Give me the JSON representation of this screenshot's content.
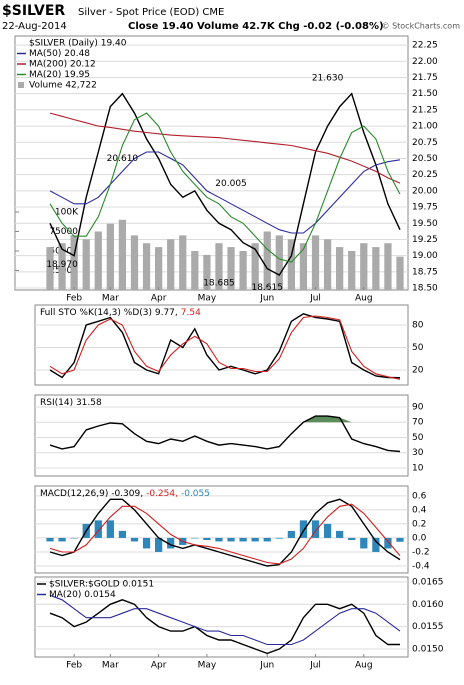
{
  "header": {
    "symbol": "$SILVER",
    "description": "Silver - Spot Price (EOD) CME",
    "date": "22-Aug-2014",
    "quote": "Close 19.40 Volume 42.7K Chg -0.02 (-0.08%)",
    "source": "© StockCharts.com"
  },
  "chart_data": [
    {
      "type": "line",
      "legend": "rows",
      "categories": [
        null,
        null,
        "Feb",
        null,
        null,
        "Mar",
        null,
        null,
        null,
        "Apr",
        null,
        null,
        null,
        "May",
        null,
        null,
        null,
        null,
        "Jun",
        null,
        null,
        null,
        "Jul",
        null,
        null,
        null,
        "Aug",
        null,
        null,
        null
      ],
      "ylim": [
        18.47,
        22.39
      ],
      "yticks": [
        {
          "value": 18.5,
          "label": "18.50"
        },
        18.75,
        {
          "value": 19,
          "label": "19.00"
        },
        19.25,
        {
          "value": 19.5,
          "label": "19.50"
        },
        19.75,
        {
          "value": 20,
          "label": "20.00"
        },
        20.25,
        {
          "value": 20.5,
          "label": "20.50"
        },
        20.75,
        {
          "value": 21,
          "label": "21.00"
        },
        21.25,
        {
          "value": 21.5,
          "label": "21.50"
        },
        21.75,
        {
          "value": 22,
          "label": "22.00"
        },
        22.25
      ],
      "y2lim": [
        0,
        325600
      ],
      "y2ticks": [
        25000,
        50000,
        75000,
        {
          "value": 100000,
          "label": "100K"
        }
      ],
      "grid": true,
      "series": [
        {
          "name": "$SILVER (Daily) 19.40",
          "color": "#000000",
          "style": "line",
          "values": [
            19.5,
            19.1,
            19.0,
            19.9,
            20.6,
            21.3,
            21.5,
            21.2,
            20.8,
            20.5,
            20.1,
            19.9,
            20.0,
            19.7,
            19.5,
            19.4,
            19.2,
            19.1,
            18.8,
            18.7,
            19.0,
            19.8,
            20.6,
            21.0,
            21.3,
            21.5,
            20.9,
            20.4,
            19.8,
            19.4
          ]
        },
        {
          "name": "MA(50) 20.48",
          "color": "#2b2b9c",
          "style": "line",
          "values": [
            20.0,
            19.9,
            19.8,
            19.8,
            19.9,
            20.1,
            20.3,
            20.5,
            20.6,
            20.6,
            20.5,
            20.4,
            20.2,
            20.0,
            19.9,
            19.8,
            19.7,
            19.6,
            19.5,
            19.4,
            19.35,
            19.35,
            19.5,
            19.7,
            19.9,
            20.1,
            20.3,
            20.4,
            20.45,
            20.48
          ]
        },
        {
          "name": "MA(200) 20.12",
          "color": "#b0202e",
          "style": "line",
          "values": [
            21.2,
            21.15,
            21.1,
            21.05,
            21.0,
            20.98,
            20.95,
            20.92,
            20.9,
            20.88,
            20.86,
            20.85,
            20.84,
            20.83,
            20.82,
            20.8,
            20.78,
            20.76,
            20.74,
            20.72,
            20.7,
            20.66,
            20.62,
            20.58,
            20.52,
            20.46,
            20.38,
            20.3,
            20.2,
            20.12
          ]
        },
        {
          "name": "MA(20) 19.95",
          "color": "#2a8a2a",
          "style": "line",
          "values": [
            19.8,
            19.5,
            19.3,
            19.3,
            19.6,
            20.1,
            20.7,
            21.1,
            21.2,
            21.0,
            20.6,
            20.3,
            20.1,
            19.9,
            19.8,
            19.6,
            19.5,
            19.3,
            19.1,
            18.95,
            18.9,
            19.1,
            19.5,
            20.0,
            20.5,
            20.9,
            21.0,
            20.8,
            20.3,
            19.95
          ]
        },
        {
          "name": "Volume 42,722",
          "color": "#aaaaaa",
          "style": "bar",
          "axis": "y2",
          "values": [
            55000,
            60000,
            70000,
            65000,
            75000,
            85000,
            90000,
            70000,
            60000,
            55000,
            65000,
            70000,
            50000,
            45000,
            60000,
            55000,
            50000,
            60000,
            75000,
            70000,
            65000,
            60000,
            70000,
            65000,
            55000,
            50000,
            60000,
            55000,
            60000,
            42722
          ]
        }
      ],
      "annotations": [
        {
          "label": "18.970",
          "index": 1,
          "value": 18.97,
          "position": "below"
        },
        {
          "label": "20.610",
          "index": 6,
          "value": 20.61,
          "position": "below"
        },
        {
          "label": "20.005",
          "index": 15,
          "value": 20.005,
          "position": "above"
        },
        {
          "label": "18.685",
          "index": 14,
          "value": 18.685,
          "position": "below"
        },
        {
          "label": "18.615",
          "index": 18,
          "value": 18.615,
          "position": "below"
        },
        {
          "label": "21.630",
          "index": 23,
          "value": 21.63,
          "position": "above"
        }
      ]
    },
    {
      "type": "line",
      "legend": "inline",
      "ylim": [
        0,
        106.7
      ],
      "yticks": [
        20,
        50,
        80
      ],
      "grid": true,
      "series": [
        {
          "name": "Full STO %K(14,3) %D(3) 9.77,",
          "color": "#000000",
          "style": "line",
          "values": [
            20,
            10,
            30,
            80,
            85,
            90,
            70,
            30,
            20,
            15,
            60,
            50,
            75,
            40,
            20,
            25,
            20,
            15,
            20,
            45,
            85,
            95,
            90,
            88,
            85,
            30,
            20,
            12,
            10,
            9.77
          ]
        },
        {
          "name": "7.54",
          "color": "#d02020",
          "style": "line",
          "values": [
            25,
            15,
            20,
            60,
            80,
            88,
            80,
            45,
            25,
            18,
            40,
            55,
            65,
            55,
            30,
            22,
            22,
            18,
            18,
            35,
            70,
            90,
            92,
            90,
            87,
            45,
            25,
            15,
            11,
            7.54
          ]
        }
      ]
    },
    {
      "type": "line",
      "legend": "inline",
      "ylim": [
        -0.5,
        105.7
      ],
      "yticks": [
        10,
        30,
        50,
        70,
        90
      ],
      "grid": true,
      "series": [
        {
          "name": "RSI(14) 31.58",
          "color": "#000000",
          "style": "line",
          "fill_above": 70,
          "fill_color": "#5b8c5b",
          "values": [
            40,
            35,
            38,
            60,
            65,
            69,
            68,
            55,
            45,
            42,
            48,
            45,
            52,
            45,
            40,
            42,
            40,
            38,
            35,
            38,
            55,
            70,
            78,
            78,
            76,
            48,
            42,
            38,
            33,
            31.58
          ]
        }
      ]
    },
    {
      "type": "line",
      "legend": "inline",
      "ylim": [
        -0.5,
        0.74
      ],
      "yticks": [
        -0.4,
        -0.2,
        {
          "value": 0,
          "label": "0.0"
        },
        0.2,
        0.4,
        0.6
      ],
      "grid": true,
      "series": [
        {
          "name": "MACD(12,26,9) -0.309,",
          "color": "#000000",
          "style": "line",
          "values": [
            -0.2,
            -0.25,
            -0.2,
            0.1,
            0.35,
            0.55,
            0.55,
            0.4,
            0.2,
            0.0,
            -0.1,
            -0.15,
            -0.1,
            -0.15,
            -0.2,
            -0.25,
            -0.3,
            -0.35,
            -0.4,
            -0.38,
            -0.2,
            0.1,
            0.35,
            0.5,
            0.55,
            0.45,
            0.2,
            -0.05,
            -0.2,
            -0.309
          ]
        },
        {
          "name": "-0.254,",
          "color": "#d02020",
          "style": "line",
          "values": [
            -0.15,
            -0.2,
            -0.2,
            -0.1,
            0.1,
            0.3,
            0.45,
            0.45,
            0.35,
            0.2,
            0.05,
            -0.05,
            -0.1,
            -0.12,
            -0.15,
            -0.2,
            -0.25,
            -0.3,
            -0.35,
            -0.37,
            -0.3,
            -0.15,
            0.1,
            0.3,
            0.45,
            0.48,
            0.35,
            0.15,
            -0.05,
            -0.254
          ]
        },
        {
          "name": "-0.055",
          "color": "#2f86b8",
          "style": "bar",
          "values": [
            -0.05,
            -0.05,
            0,
            0.2,
            0.25,
            0.25,
            0.1,
            -0.05,
            -0.15,
            -0.2,
            -0.15,
            -0.1,
            0,
            -0.03,
            -0.05,
            -0.05,
            -0.05,
            -0.05,
            -0.05,
            -0.01,
            0.1,
            0.25,
            0.25,
            0.2,
            0.1,
            -0.03,
            -0.15,
            -0.2,
            -0.15,
            -0.055
          ]
        }
      ]
    },
    {
      "type": "line",
      "legend": "rows",
      "categories": [
        null,
        null,
        "Feb",
        null,
        null,
        "Mar",
        null,
        null,
        null,
        "Apr",
        null,
        null,
        null,
        "May",
        null,
        null,
        null,
        null,
        "Jun",
        null,
        null,
        null,
        "Jul",
        null,
        null,
        null,
        "Aug",
        null,
        null,
        null
      ],
      "ylim": [
        0.01482,
        0.01661
      ],
      "yticks": [
        {
          "value": 0.015,
          "label": "0.0150"
        },
        {
          "value": 0.0155,
          "label": "0.0155"
        },
        {
          "value": 0.016,
          "label": "0.0160"
        },
        {
          "value": 0.0165,
          "label": "0.0165"
        }
      ],
      "grid": true,
      "series": [
        {
          "name": "$SILVER:$GOLD 0.0151",
          "color": "#000000",
          "style": "line",
          "values": [
            0.0158,
            0.0157,
            0.0155,
            0.0156,
            0.0158,
            0.016,
            0.0161,
            0.016,
            0.0157,
            0.0155,
            0.0154,
            0.0154,
            0.0155,
            0.0153,
            0.0152,
            0.0152,
            0.0151,
            0.015,
            0.0149,
            0.015,
            0.0152,
            0.0157,
            0.016,
            0.016,
            0.0159,
            0.016,
            0.0158,
            0.0153,
            0.0151,
            0.0151
          ]
        },
        {
          "name": "MA(20) 0.0154",
          "color": "#2b2b9c",
          "style": "line",
          "values": [
            0.0162,
            0.0161,
            0.0159,
            0.0157,
            0.0157,
            0.0157,
            0.0158,
            0.0159,
            0.0159,
            0.0158,
            0.0157,
            0.0156,
            0.0155,
            0.0154,
            0.0154,
            0.0153,
            0.0153,
            0.0152,
            0.0151,
            0.0151,
            0.0151,
            0.0152,
            0.0154,
            0.0156,
            0.0158,
            0.0159,
            0.0159,
            0.0158,
            0.0156,
            0.0154
          ]
        }
      ]
    }
  ]
}
